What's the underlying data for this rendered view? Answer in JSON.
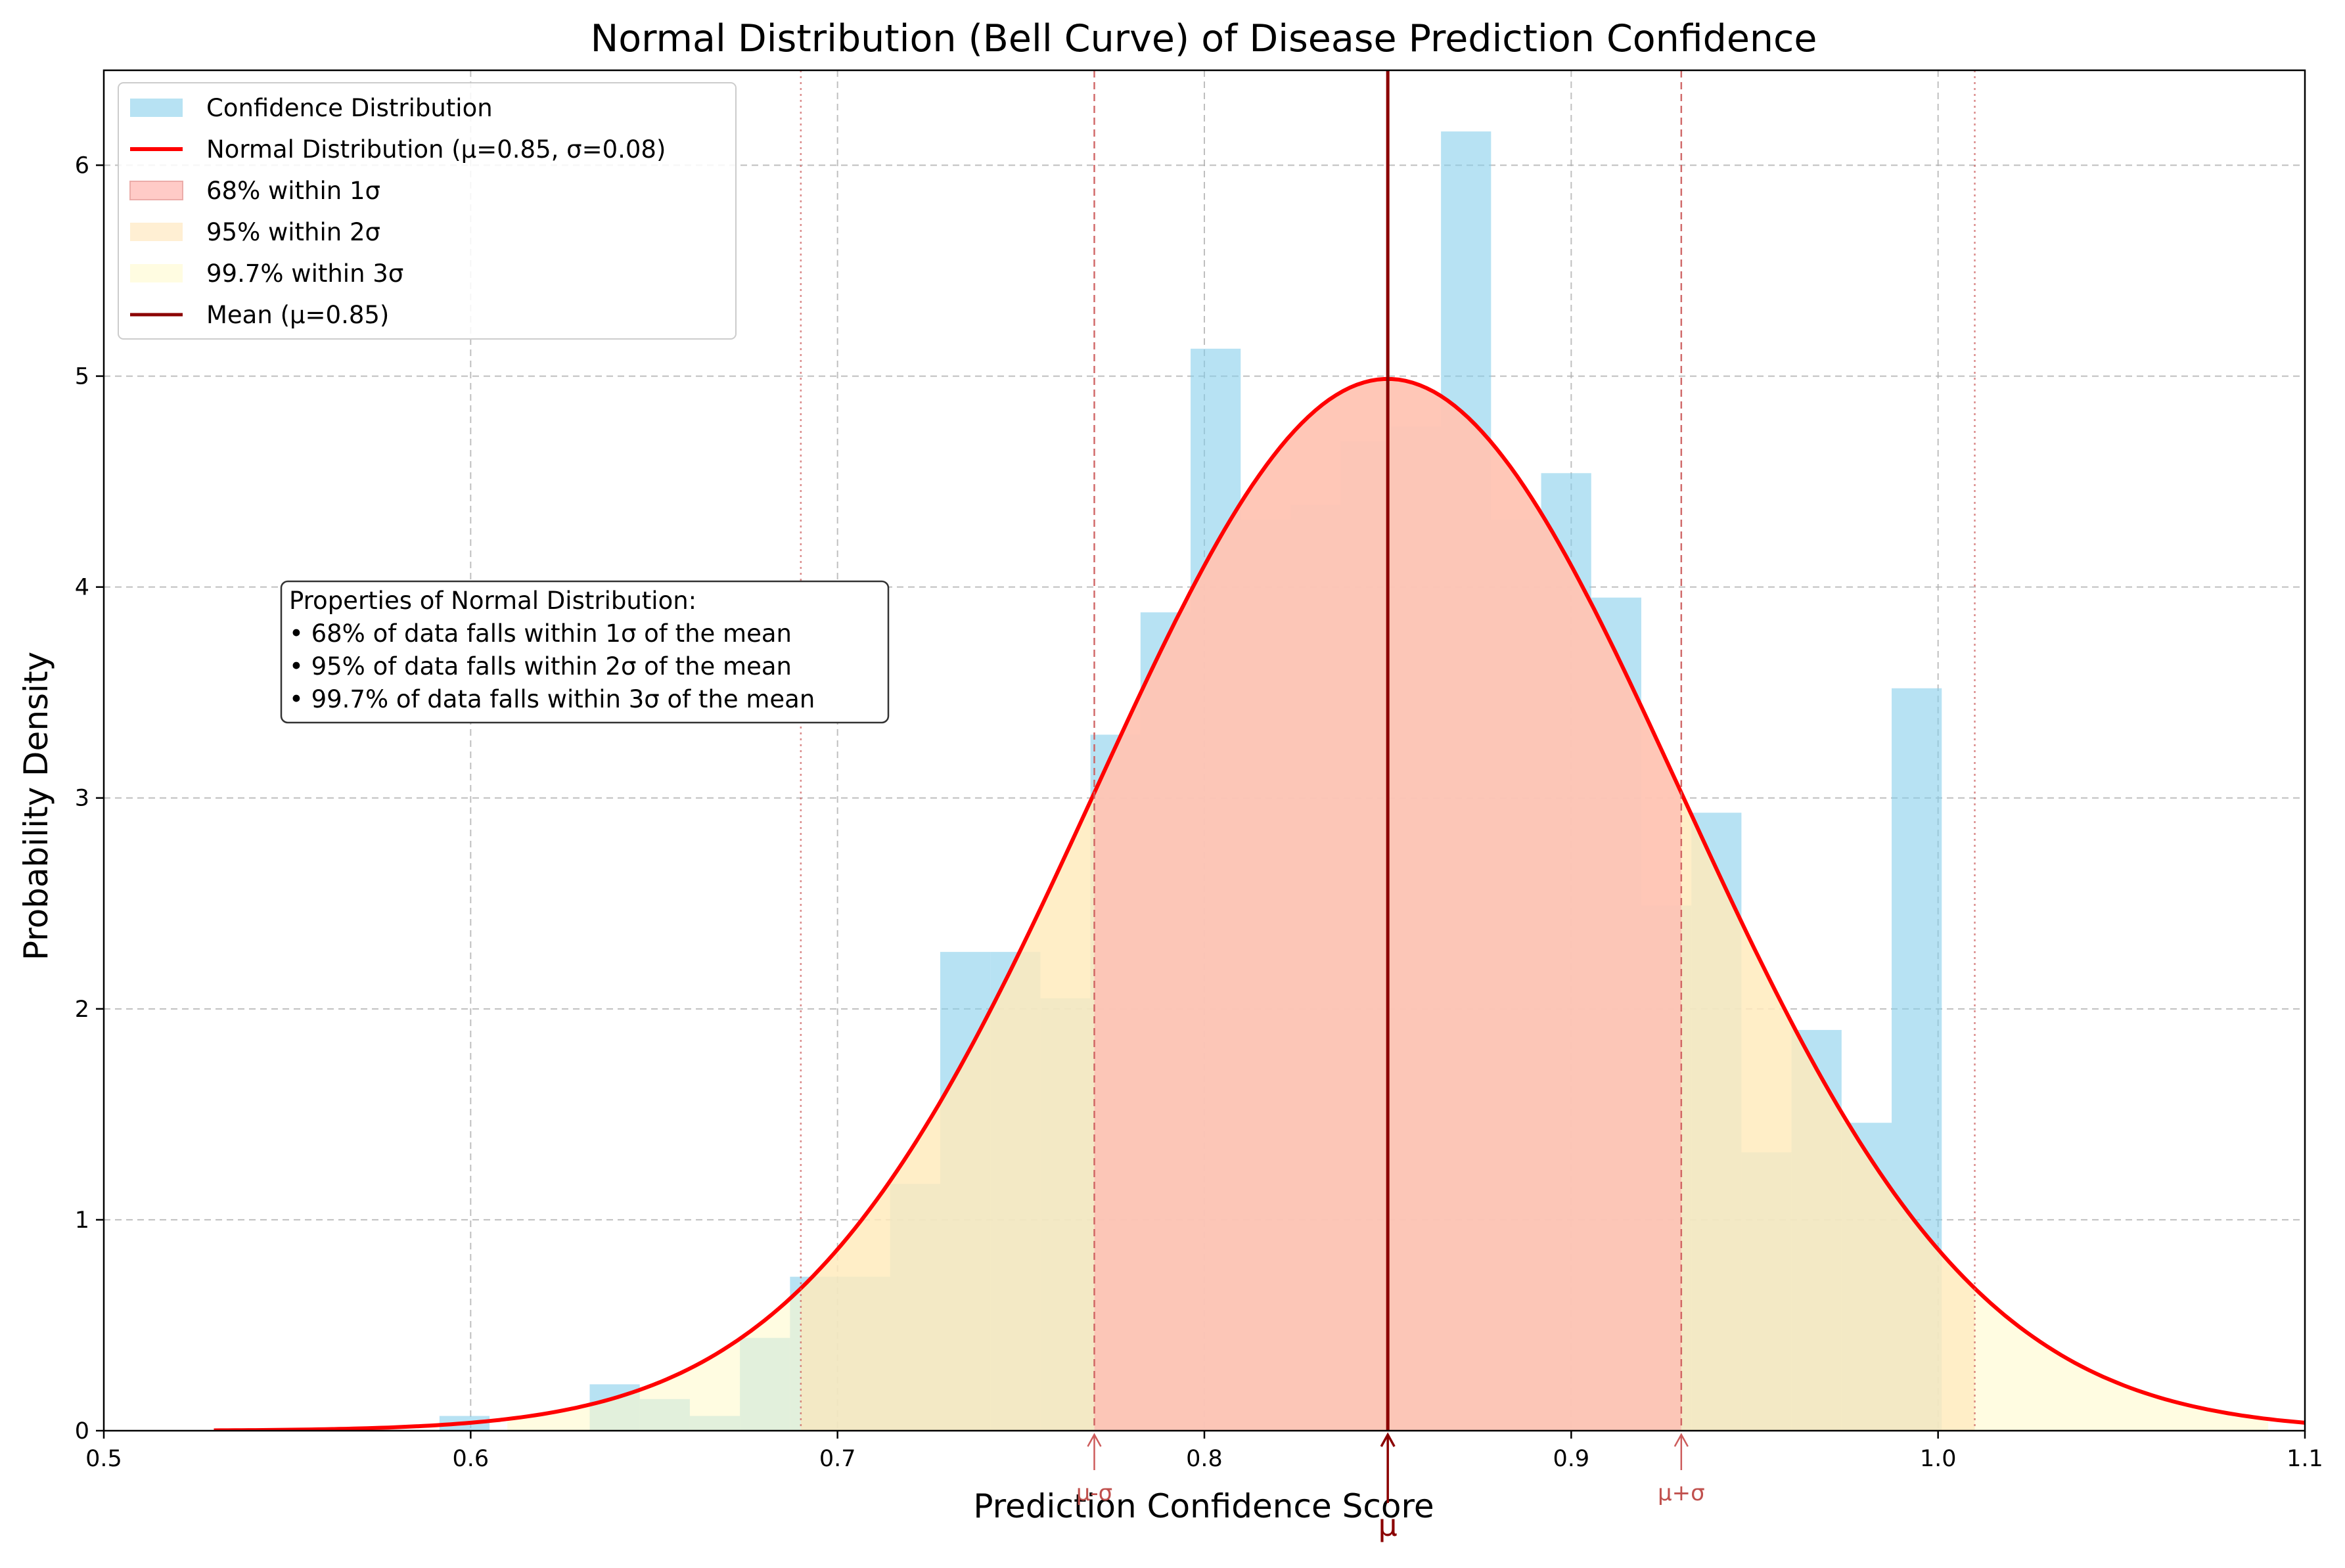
{
  "chart_data": {
    "type": "bar",
    "title": "Normal Distribution (Bell Curve) of Disease Prediction Confidence",
    "xlabel": "Prediction Confidence Score",
    "ylabel": "Probability Density",
    "xlim": [
      0.5,
      1.1
    ],
    "ylim": [
      0,
      6.45
    ],
    "xticks": [
      0.5,
      0.6,
      0.7,
      0.8,
      0.9,
      1.0,
      1.1
    ],
    "xtick_labels": [
      "0.5",
      "0.6",
      "0.7",
      "0.8",
      "0.9",
      "1.0",
      "1.1"
    ],
    "yticks": [
      0,
      1,
      2,
      3,
      4,
      5,
      6
    ],
    "ytick_labels": [
      "0",
      "1",
      "2",
      "3",
      "4",
      "5",
      "6"
    ],
    "grid": true,
    "legend_position": "top-left",
    "legend": [
      "Confidence Distribution",
      "Normal Distribution (μ=0.85, σ=0.08)",
      "68% within 1σ",
      "95% within 2σ",
      "99.7% within 3σ",
      "Mean (μ=0.85)"
    ],
    "histogram": {
      "name": "Confidence Distribution",
      "bin_start": 0.5915,
      "bin_width": 0.01365,
      "values": [
        0.07,
        0,
        0,
        0.22,
        0.15,
        0.07,
        0.44,
        0.73,
        0.73,
        1.17,
        2.27,
        2.27,
        2.05,
        3.3,
        3.88,
        5.13,
        4.32,
        4.39,
        4.69,
        4.76,
        6.16,
        4.32,
        4.54,
        3.95,
        2.49,
        2.93,
        1.32,
        1.9,
        1.46,
        3.52
      ]
    },
    "normal": {
      "name": "Normal Distribution (μ=0.85, σ=0.08)",
      "mu": 0.85,
      "sigma": 0.08,
      "x_range": [
        0.53,
        1.1
      ]
    },
    "mean_label": "Mean (μ=0.85)",
    "sigma_bands": [
      {
        "label": "68% within 1σ",
        "range": [
          0.77,
          0.93
        ]
      },
      {
        "label": "95% within 2σ",
        "range": [
          0.69,
          1.01
        ]
      },
      {
        "label": "99.7% within 3σ",
        "range": [
          0.61,
          1.09
        ]
      }
    ],
    "dotted_lines_x": [
      0.69,
      1.01
    ],
    "dashed_lines_x": [
      0.77,
      0.93
    ],
    "arrow_annotations": [
      {
        "text": "μ-σ",
        "x": 0.77
      },
      {
        "text": "μ",
        "x": 0.85
      },
      {
        "text": "μ+σ",
        "x": 0.93
      }
    ],
    "info_box": [
      "Properties of Normal Distribution:",
      "• 68% of data falls within 1σ of the mean",
      "• 95% of data falls within 2σ of the mean",
      "• 99.7% of data falls within 3σ of the mean"
    ],
    "colors": {
      "histogram": "#87ceeb",
      "curve": "#ff0000",
      "band1": "#ffb6b0",
      "band2": "#ffe4b5",
      "band3": "#fffacd",
      "mean": "#8b0000",
      "guide": "#cd5c5c"
    }
  }
}
